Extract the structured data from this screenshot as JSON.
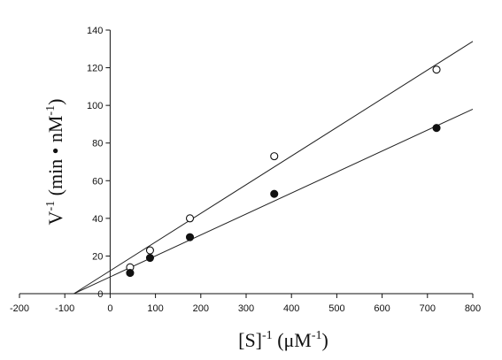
{
  "chart_data": {
    "type": "scatter",
    "title": "",
    "xlabel": "[S]",
    "xlabel_sup": "-1",
    "xlabel_unit": " (μM",
    "xlabel_unit_sup": "-1",
    "xlabel_close": ")",
    "ylabel": "V",
    "ylabel_sup": "-1",
    "ylabel_unit": " (min • nM",
    "ylabel_unit_sup": "-1",
    "ylabel_close": ")",
    "xlim": [
      -200,
      800
    ],
    "ylim": [
      0,
      140
    ],
    "xticks": [
      -200,
      -100,
      0,
      100,
      200,
      300,
      400,
      500,
      600,
      700,
      800
    ],
    "yticks": [
      0,
      20,
      40,
      60,
      80,
      100,
      120,
      140
    ],
    "grid": false,
    "series": [
      {
        "marker": "open-circle",
        "x": [
          44,
          88,
          176,
          362,
          720
        ],
        "y": [
          14,
          23,
          40,
          73,
          119
        ],
        "fit": {
          "x": [
            -80,
            800
          ],
          "y": [
            0,
            134
          ]
        }
      },
      {
        "marker": "filled-circle",
        "x": [
          44,
          88,
          176,
          362,
          720
        ],
        "y": [
          11,
          19,
          30,
          53,
          88
        ],
        "fit": {
          "x": [
            -80,
            800
          ],
          "y": [
            0,
            98
          ]
        }
      }
    ]
  }
}
